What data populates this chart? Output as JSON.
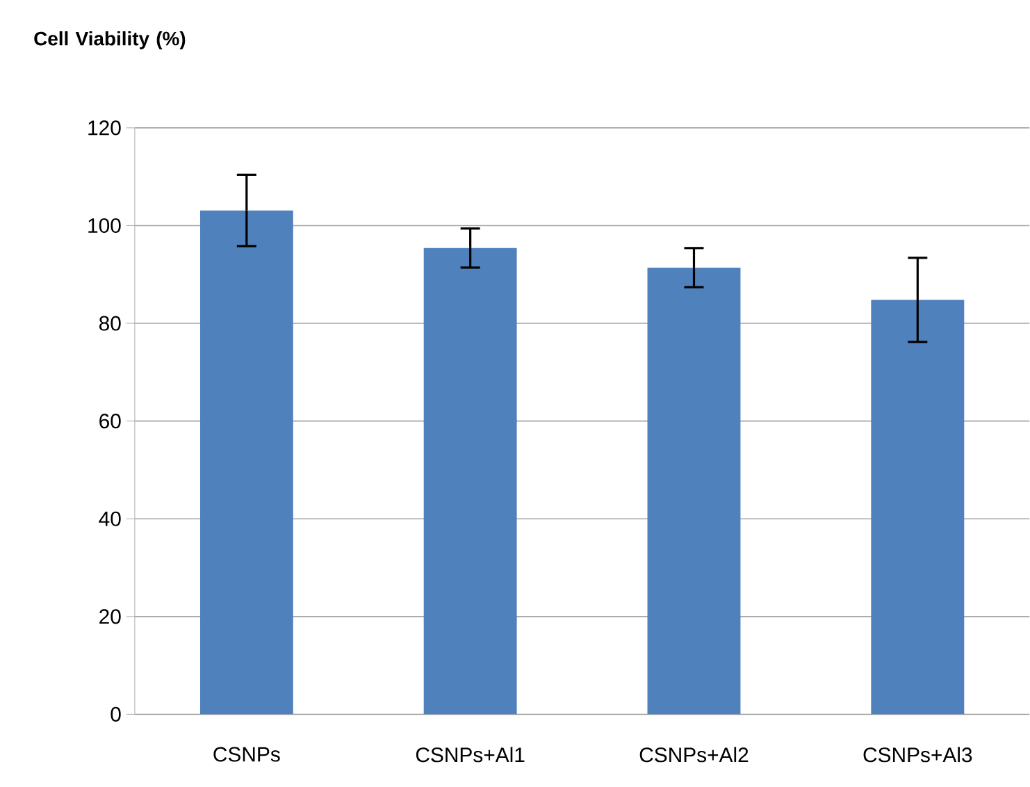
{
  "chart_data": {
    "type": "bar",
    "ylabel": "Cell Viability (%)",
    "categories": [
      "CSNPs",
      "CSNPs+Al1",
      "CSNPs+Al2",
      "CSNPs+Al3"
    ],
    "values": [
      103.1,
      95.4,
      91.4,
      84.8
    ],
    "errors": [
      7.3,
      4,
      4,
      8.6
    ],
    "color": "#4f81bd",
    "ylim": [
      0,
      120
    ],
    "yticks": [
      0,
      20,
      40,
      60,
      80,
      100,
      120
    ],
    "grid": "y"
  }
}
